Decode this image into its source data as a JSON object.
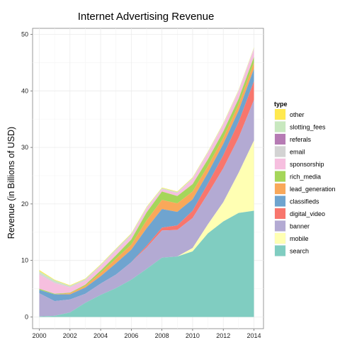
{
  "chart_data": {
    "type": "area",
    "stacked": true,
    "title": "Internet Advertising Revenue",
    "xlabel": "",
    "ylabel": "Revenue (in Billions of USD)",
    "xlim": [
      2000,
      2014
    ],
    "ylim": [
      0,
      50
    ],
    "x_ticks": [
      2000,
      2002,
      2004,
      2006,
      2008,
      2010,
      2012,
      2014
    ],
    "y_ticks": [
      0,
      10,
      20,
      30,
      40,
      50
    ],
    "grid": true,
    "legend": {
      "title": "type",
      "position": "right"
    },
    "x": [
      2000,
      2001,
      2002,
      2003,
      2004,
      2005,
      2006,
      2007,
      2008,
      2009,
      2010,
      2011,
      2012,
      2013,
      2014
    ],
    "series": [
      {
        "name": "search",
        "color": "#80cdc1",
        "values": [
          0.1,
          0.2,
          0.8,
          2.5,
          3.9,
          5.1,
          6.6,
          8.5,
          10.5,
          10.7,
          11.6,
          14.8,
          16.9,
          18.4,
          18.8
        ]
      },
      {
        "name": "mobile",
        "color": "#ffffb3",
        "values": [
          0,
          0,
          0,
          0,
          0,
          0,
          0,
          0,
          0,
          0,
          0.6,
          1.6,
          3.4,
          7.1,
          12.4
        ]
      },
      {
        "name": "banner",
        "color": "#b3aad3",
        "values": [
          4.1,
          2.6,
          2.3,
          1.6,
          2.0,
          2.4,
          3.1,
          3.8,
          4.8,
          4.7,
          5.3,
          5.4,
          6.0,
          6.2,
          7.2
        ]
      },
      {
        "name": "digital_video",
        "color": "#f8766d",
        "values": [
          0,
          0,
          0,
          0,
          0,
          0,
          0,
          0.3,
          0.5,
          0.8,
          1.3,
          1.8,
          2.3,
          2.8,
          3.3
        ]
      },
      {
        "name": "classifieds",
        "color": "#6fa4cf",
        "values": [
          0.6,
          1.2,
          0.9,
          1.1,
          1.3,
          2.0,
          2.2,
          3.1,
          3.3,
          2.4,
          2.0,
          1.9,
          2.0,
          2.0,
          2.2
        ]
      },
      {
        "name": "lead_generation",
        "color": "#f9a85a",
        "values": [
          0,
          0,
          0.2,
          0.3,
          0.6,
          0.8,
          0.9,
          1.4,
          1.6,
          1.5,
          1.4,
          1.2,
          1.1,
          1.1,
          1.1
        ]
      },
      {
        "name": "rich_media",
        "color": "#a5d65a",
        "values": [
          0.2,
          0.1,
          0.1,
          0.2,
          0.4,
          0.6,
          0.9,
          1.4,
          1.5,
          1.3,
          1.3,
          1.2,
          1.1,
          1.0,
          1.0
        ]
      },
      {
        "name": "sponsorship",
        "color": "#f6bfdf",
        "values": [
          2.5,
          1.9,
          0.9,
          0.7,
          0.8,
          0.8,
          0.7,
          0.7,
          0.4,
          0.5,
          0.9,
          1.1,
          1.2,
          1.3,
          1.4
        ]
      },
      {
        "name": "email",
        "color": "#d3d3d3",
        "values": [
          0.3,
          0.2,
          0.2,
          0.2,
          0.1,
          0.2,
          0.2,
          0.1,
          0.1,
          0.1,
          0.1,
          0.1,
          0.1,
          0.1,
          0.1
        ]
      },
      {
        "name": "referals",
        "color": "#b67bb4",
        "values": [
          0,
          0,
          0,
          0,
          0,
          0,
          0,
          0,
          0,
          0,
          0,
          0,
          0,
          0,
          0
        ]
      },
      {
        "name": "slotting_fees",
        "color": "#c8e8bf",
        "values": [
          0.3,
          0.3,
          0.1,
          0.1,
          0.1,
          0.1,
          0.1,
          0.1,
          0.1,
          0.1,
          0.1,
          0.1,
          0.1,
          0.1,
          0.1
        ]
      },
      {
        "name": "other",
        "color": "#ffe94f",
        "values": [
          0.2,
          0.1,
          0.1,
          0.1,
          0.1,
          0.1,
          0.1,
          0.1,
          0.1,
          0.1,
          0.1,
          0.1,
          0.1,
          0.1,
          0.1
        ]
      }
    ]
  }
}
